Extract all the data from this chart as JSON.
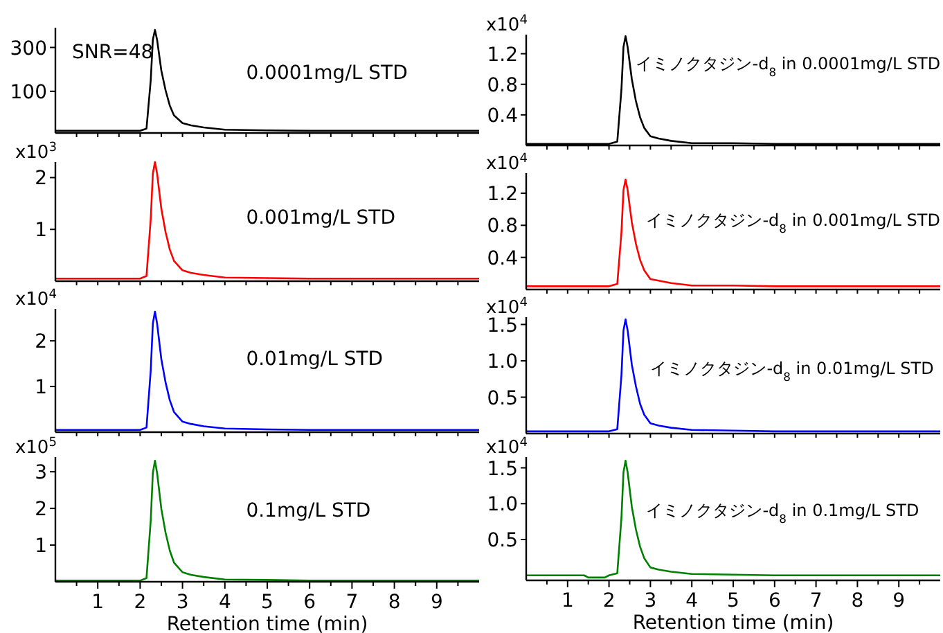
{
  "chart_data": [
    {
      "type": "line",
      "x": [
        0,
        1,
        2,
        2.15,
        2.25,
        2.3,
        2.35,
        2.4,
        2.5,
        2.6,
        2.7,
        2.8,
        3.0,
        3.2,
        3.5,
        4,
        5,
        6,
        7,
        8,
        9,
        10
      ],
      "xlim": [
        0,
        10
      ],
      "ylim": [
        -90,
        390
      ],
      "yticks": [
        100,
        300
      ],
      "tick_labels": "y",
      "annotations": [
        "SNR=48",
        "0.0001mg/L STD"
      ],
      "xticks": [
        {
          "value": 0.5,
          "label": null
        },
        {
          "value": 1,
          "label": null
        },
        {
          "value": 1.5,
          "label": null
        },
        {
          "value": 2,
          "label": null
        },
        {
          "value": 2.5,
          "label": null
        },
        {
          "value": 3,
          "label": null
        },
        {
          "value": 3.5,
          "label": null
        },
        {
          "value": 4,
          "label": null
        },
        {
          "value": 4.5,
          "label": null
        },
        {
          "value": 5,
          "label": null
        },
        {
          "value": 5.5,
          "label": null
        },
        {
          "value": 6,
          "label": null
        },
        {
          "value": 6.5,
          "label": null
        },
        {
          "value": 7,
          "label": null
        },
        {
          "value": 7.5,
          "label": null
        },
        {
          "value": 8,
          "label": null
        },
        {
          "value": 8.5,
          "label": null
        },
        {
          "value": 9,
          "label": null
        },
        {
          "value": 9.5,
          "label": null
        }
      ],
      "series": [
        {
          "color": "#000000",
          "values": [
            -80,
            -80,
            -80,
            -70,
            150,
            335,
            380,
            335,
            195,
            105,
            35,
            -10,
            -45,
            -55,
            -65,
            -75,
            -78,
            -80,
            -80,
            -80,
            -80,
            -80
          ]
        }
      ]
    },
    {
      "type": "line",
      "x": [
        0,
        1,
        2,
        2.2,
        2.3,
        2.35,
        2.4,
        2.45,
        2.55,
        2.65,
        2.75,
        2.85,
        3.0,
        3.2,
        3.5,
        4,
        5,
        6,
        7,
        8,
        9,
        10
      ],
      "xlim": [
        0,
        10
      ],
      "ylim": [
        0,
        1.45
      ],
      "yticks": [
        0.4,
        0.8,
        1.2
      ],
      "ylabel": "x10$^{4}$",
      "tick_labels": "y",
      "annotations": [
        "イミノクタジン-d$_{8}$ in 0.0001mg/L STD"
      ],
      "xticks": [
        {
          "value": 0.5,
          "label": null
        },
        {
          "value": 1,
          "label": null
        },
        {
          "value": 1.5,
          "label": null
        },
        {
          "value": 2,
          "label": null
        },
        {
          "value": 2.5,
          "label": null
        },
        {
          "value": 3,
          "label": null
        },
        {
          "value": 3.5,
          "label": null
        },
        {
          "value": 4,
          "label": null
        },
        {
          "value": 4.5,
          "label": null
        },
        {
          "value": 5,
          "label": null
        },
        {
          "value": 5.5,
          "label": null
        },
        {
          "value": 6,
          "label": null
        },
        {
          "value": 6.5,
          "label": null
        },
        {
          "value": 7,
          "label": null
        },
        {
          "value": 7.5,
          "label": null
        },
        {
          "value": 8,
          "label": null
        },
        {
          "value": 8.5,
          "label": null
        },
        {
          "value": 9,
          "label": null
        },
        {
          "value": 9.5,
          "label": null
        }
      ],
      "series": [
        {
          "color": "#000000",
          "values": [
            0.02,
            0.02,
            0.02,
            0.05,
            0.73,
            1.29,
            1.43,
            1.29,
            0.87,
            0.58,
            0.37,
            0.23,
            0.12,
            0.09,
            0.06,
            0.03,
            0.03,
            0.02,
            0.02,
            0.02,
            0.02,
            0.02
          ]
        }
      ]
    },
    {
      "type": "line",
      "x": [
        0,
        1,
        2,
        2.15,
        2.25,
        2.3,
        2.35,
        2.4,
        2.5,
        2.6,
        2.7,
        2.8,
        3.0,
        3.2,
        3.5,
        4,
        5,
        6,
        7,
        8,
        9,
        10
      ],
      "xlim": [
        0,
        10
      ],
      "ylim": [
        0,
        2.3
      ],
      "yticks": [
        1,
        2
      ],
      "ylabel": "x10$^{3}$",
      "tick_labels": "y",
      "annotations": [
        "0.001mg/L STD"
      ],
      "xticks": [
        {
          "value": 0.5,
          "label": null
        },
        {
          "value": 1,
          "label": null
        },
        {
          "value": 1.5,
          "label": null
        },
        {
          "value": 2,
          "label": null
        },
        {
          "value": 2.5,
          "label": null
        },
        {
          "value": 3,
          "label": null
        },
        {
          "value": 3.5,
          "label": null
        },
        {
          "value": 4,
          "label": null
        },
        {
          "value": 4.5,
          "label": null
        },
        {
          "value": 5,
          "label": null
        },
        {
          "value": 5.5,
          "label": null
        },
        {
          "value": 6,
          "label": null
        },
        {
          "value": 6.5,
          "label": null
        },
        {
          "value": 7,
          "label": null
        },
        {
          "value": 7.5,
          "label": null
        },
        {
          "value": 8,
          "label": null
        },
        {
          "value": 8.5,
          "label": null
        },
        {
          "value": 9,
          "label": null
        },
        {
          "value": 9.5,
          "label": null
        }
      ],
      "series": [
        {
          "color": "#ff0000",
          "values": [
            0.05,
            0.05,
            0.05,
            0.1,
            1.2,
            2.08,
            2.3,
            2.08,
            1.4,
            0.95,
            0.61,
            0.39,
            0.21,
            0.16,
            0.12,
            0.07,
            0.06,
            0.05,
            0.05,
            0.05,
            0.05,
            0.05
          ]
        }
      ]
    },
    {
      "type": "line",
      "x": [
        0,
        1,
        2,
        2.2,
        2.3,
        2.35,
        2.4,
        2.45,
        2.55,
        2.65,
        2.75,
        2.85,
        3.0,
        3.2,
        3.5,
        4,
        5,
        6,
        7,
        8,
        9,
        10
      ],
      "xlim": [
        0,
        10
      ],
      "ylim": [
        0,
        1.45
      ],
      "yticks": [
        0.4,
        0.8,
        1.2
      ],
      "ylabel": "x10$^{4}$",
      "tick_labels": "y",
      "annotations": [
        "イミノクタジン-d$_{8}$ in 0.001mg/L STD"
      ],
      "xticks": [
        {
          "value": 0.5,
          "label": null
        },
        {
          "value": 1,
          "label": null
        },
        {
          "value": 1.5,
          "label": null
        },
        {
          "value": 2,
          "label": null
        },
        {
          "value": 2.5,
          "label": null
        },
        {
          "value": 3,
          "label": null
        },
        {
          "value": 3.5,
          "label": null
        },
        {
          "value": 4,
          "label": null
        },
        {
          "value": 4.5,
          "label": null
        },
        {
          "value": 5,
          "label": null
        },
        {
          "value": 5.5,
          "label": null
        },
        {
          "value": 6,
          "label": null
        },
        {
          "value": 6.5,
          "label": null
        },
        {
          "value": 7,
          "label": null
        },
        {
          "value": 7.5,
          "label": null
        },
        {
          "value": 8,
          "label": null
        },
        {
          "value": 8.5,
          "label": null
        },
        {
          "value": 9,
          "label": null
        },
        {
          "value": 9.5,
          "label": null
        }
      ],
      "series": [
        {
          "color": "#ff0000",
          "values": [
            0.04,
            0.04,
            0.04,
            0.07,
            0.71,
            1.24,
            1.37,
            1.24,
            0.84,
            0.57,
            0.37,
            0.24,
            0.13,
            0.11,
            0.08,
            0.05,
            0.05,
            0.04,
            0.04,
            0.04,
            0.04,
            0.04
          ]
        }
      ]
    },
    {
      "type": "line",
      "x": [
        0,
        1,
        2,
        2.15,
        2.25,
        2.3,
        2.35,
        2.4,
        2.5,
        2.6,
        2.7,
        2.8,
        3.0,
        3.2,
        3.5,
        4,
        5,
        6,
        7,
        8,
        9,
        10
      ],
      "xlim": [
        0,
        10
      ],
      "ylim": [
        0,
        2.7
      ],
      "yticks": [
        1,
        2
      ],
      "ylabel": "x10$^{4}$",
      "tick_labels": "y",
      "annotations": [
        "0.01mg/L STD"
      ],
      "xticks": [
        {
          "value": 0.5,
          "label": null
        },
        {
          "value": 1,
          "label": null
        },
        {
          "value": 1.5,
          "label": null
        },
        {
          "value": 2,
          "label": null
        },
        {
          "value": 2.5,
          "label": null
        },
        {
          "value": 3,
          "label": null
        },
        {
          "value": 3.5,
          "label": null
        },
        {
          "value": 4,
          "label": null
        },
        {
          "value": 4.5,
          "label": null
        },
        {
          "value": 5,
          "label": null
        },
        {
          "value": 5.5,
          "label": null
        },
        {
          "value": 6,
          "label": null
        },
        {
          "value": 6.5,
          "label": null
        },
        {
          "value": 7,
          "label": null
        },
        {
          "value": 7.5,
          "label": null
        },
        {
          "value": 8,
          "label": null
        },
        {
          "value": 8.5,
          "label": null
        },
        {
          "value": 9,
          "label": null
        },
        {
          "value": 9.5,
          "label": null
        }
      ],
      "series": [
        {
          "color": "#0000ff",
          "values": [
            0.05,
            0.05,
            0.05,
            0.1,
            1.35,
            2.38,
            2.64,
            2.38,
            1.6,
            1.09,
            0.7,
            0.44,
            0.23,
            0.18,
            0.13,
            0.08,
            0.06,
            0.05,
            0.05,
            0.05,
            0.05,
            0.05
          ]
        }
      ]
    },
    {
      "type": "line",
      "x": [
        0,
        1,
        2,
        2.2,
        2.3,
        2.35,
        2.4,
        2.45,
        2.55,
        2.65,
        2.75,
        2.85,
        3.0,
        3.2,
        3.5,
        4,
        5,
        6,
        7,
        8,
        9,
        10
      ],
      "xlim": [
        0,
        10
      ],
      "ylim": [
        0,
        1.6
      ],
      "yticks": [
        0.5,
        {
          "value": 1,
          "label": "1.0"
        },
        1.5
      ],
      "ylabel": "x10$^{4}$",
      "tick_labels": "y",
      "annotations": [
        "イミノクタジン-d$_{8}$ in 0.01mg/L STD"
      ],
      "xticks": [
        {
          "value": 0.5,
          "label": null
        },
        {
          "value": 1,
          "label": null
        },
        {
          "value": 1.5,
          "label": null
        },
        {
          "value": 2,
          "label": null
        },
        {
          "value": 2.5,
          "label": null
        },
        {
          "value": 3,
          "label": null
        },
        {
          "value": 3.5,
          "label": null
        },
        {
          "value": 4,
          "label": null
        },
        {
          "value": 4.5,
          "label": null
        },
        {
          "value": 5,
          "label": null
        },
        {
          "value": 5.5,
          "label": null
        },
        {
          "value": 6,
          "label": null
        },
        {
          "value": 6.5,
          "label": null
        },
        {
          "value": 7,
          "label": null
        },
        {
          "value": 7.5,
          "label": null
        },
        {
          "value": 8,
          "label": null
        },
        {
          "value": 8.5,
          "label": null
        },
        {
          "value": 9,
          "label": null
        },
        {
          "value": 9.5,
          "label": null
        }
      ],
      "series": [
        {
          "color": "#0000ff",
          "values": [
            0.03,
            0.03,
            0.03,
            0.06,
            0.8,
            1.42,
            1.57,
            1.42,
            0.95,
            0.65,
            0.41,
            0.26,
            0.14,
            0.11,
            0.08,
            0.05,
            0.04,
            0.03,
            0.03,
            0.03,
            0.03,
            0.03
          ]
        }
      ]
    },
    {
      "type": "line",
      "x": [
        0,
        1,
        2,
        2.15,
        2.25,
        2.3,
        2.35,
        2.4,
        2.5,
        2.6,
        2.7,
        2.8,
        3.0,
        3.2,
        3.5,
        4,
        5,
        6,
        7,
        8,
        9,
        10
      ],
      "xlim": [
        0,
        10
      ],
      "ylim": [
        0,
        3.4
      ],
      "yticks": [
        1,
        2,
        3
      ],
      "ylabel": "x10$^{5}$",
      "xlabel": "Retention time (min)",
      "annotations": [
        "0.1mg/L STD"
      ],
      "xticks": [
        {
          "value": 0.5,
          "label": null
        },
        1,
        {
          "value": 1.5,
          "label": null
        },
        2,
        {
          "value": 2.5,
          "label": null
        },
        3,
        {
          "value": 3.5,
          "label": null
        },
        4,
        {
          "value": 4.5,
          "label": null
        },
        5,
        {
          "value": 5.5,
          "label": null
        },
        6,
        {
          "value": 6.5,
          "label": null
        },
        7,
        {
          "value": 7.5,
          "label": null
        },
        8,
        {
          "value": 8.5,
          "label": null
        },
        9,
        {
          "value": 9.5,
          "label": null
        }
      ],
      "series": [
        {
          "color": "#008000",
          "values": [
            0.03,
            0.03,
            0.03,
            0.1,
            1.67,
            2.97,
            3.3,
            2.97,
            1.99,
            1.34,
            0.85,
            0.52,
            0.26,
            0.19,
            0.13,
            0.06,
            0.05,
            0.03,
            0.03,
            0.03,
            0.03,
            0.03
          ]
        }
      ]
    },
    {
      "type": "line",
      "x": [
        0,
        1,
        1.4,
        1.5,
        1.9,
        2,
        2.2,
        2.3,
        2.35,
        2.4,
        2.45,
        2.55,
        2.65,
        2.75,
        2.85,
        3.0,
        3.2,
        3.5,
        4,
        5,
        6,
        7,
        8,
        9,
        10
      ],
      "xlim": [
        0,
        10
      ],
      "ylim": [
        -0.07,
        1.65
      ],
      "yticks": [
        0.5,
        {
          "value": 1,
          "label": "1.0"
        },
        1.5
      ],
      "ylabel": "x10$^{4}$",
      "xlabel": "Retention time (min)",
      "annotations": [
        "イミノクタジン-d$_{8}$ in 0.1mg/L STD"
      ],
      "xticks": [
        {
          "value": 0.5,
          "label": null
        },
        1,
        {
          "value": 1.5,
          "label": null
        },
        2,
        {
          "value": 2.5,
          "label": null
        },
        3,
        {
          "value": 3.5,
          "label": null
        },
        4,
        {
          "value": 4.5,
          "label": null
        },
        5,
        {
          "value": 5.5,
          "label": null
        },
        6,
        {
          "value": 6.5,
          "label": null
        },
        7,
        {
          "value": 7.5,
          "label": null
        },
        8,
        {
          "value": 8.5,
          "label": null
        },
        9,
        {
          "value": 9.5,
          "label": null
        }
      ],
      "series": [
        {
          "color": "#008000",
          "values": [
            0,
            0,
            0,
            -0.03,
            -0.03,
            0,
            0.03,
            0.8,
            1.44,
            1.6,
            1.44,
            0.96,
            0.64,
            0.4,
            0.24,
            0.11,
            0.08,
            0.05,
            0.02,
            0.01,
            0,
            0,
            0,
            0,
            0
          ]
        }
      ]
    }
  ]
}
